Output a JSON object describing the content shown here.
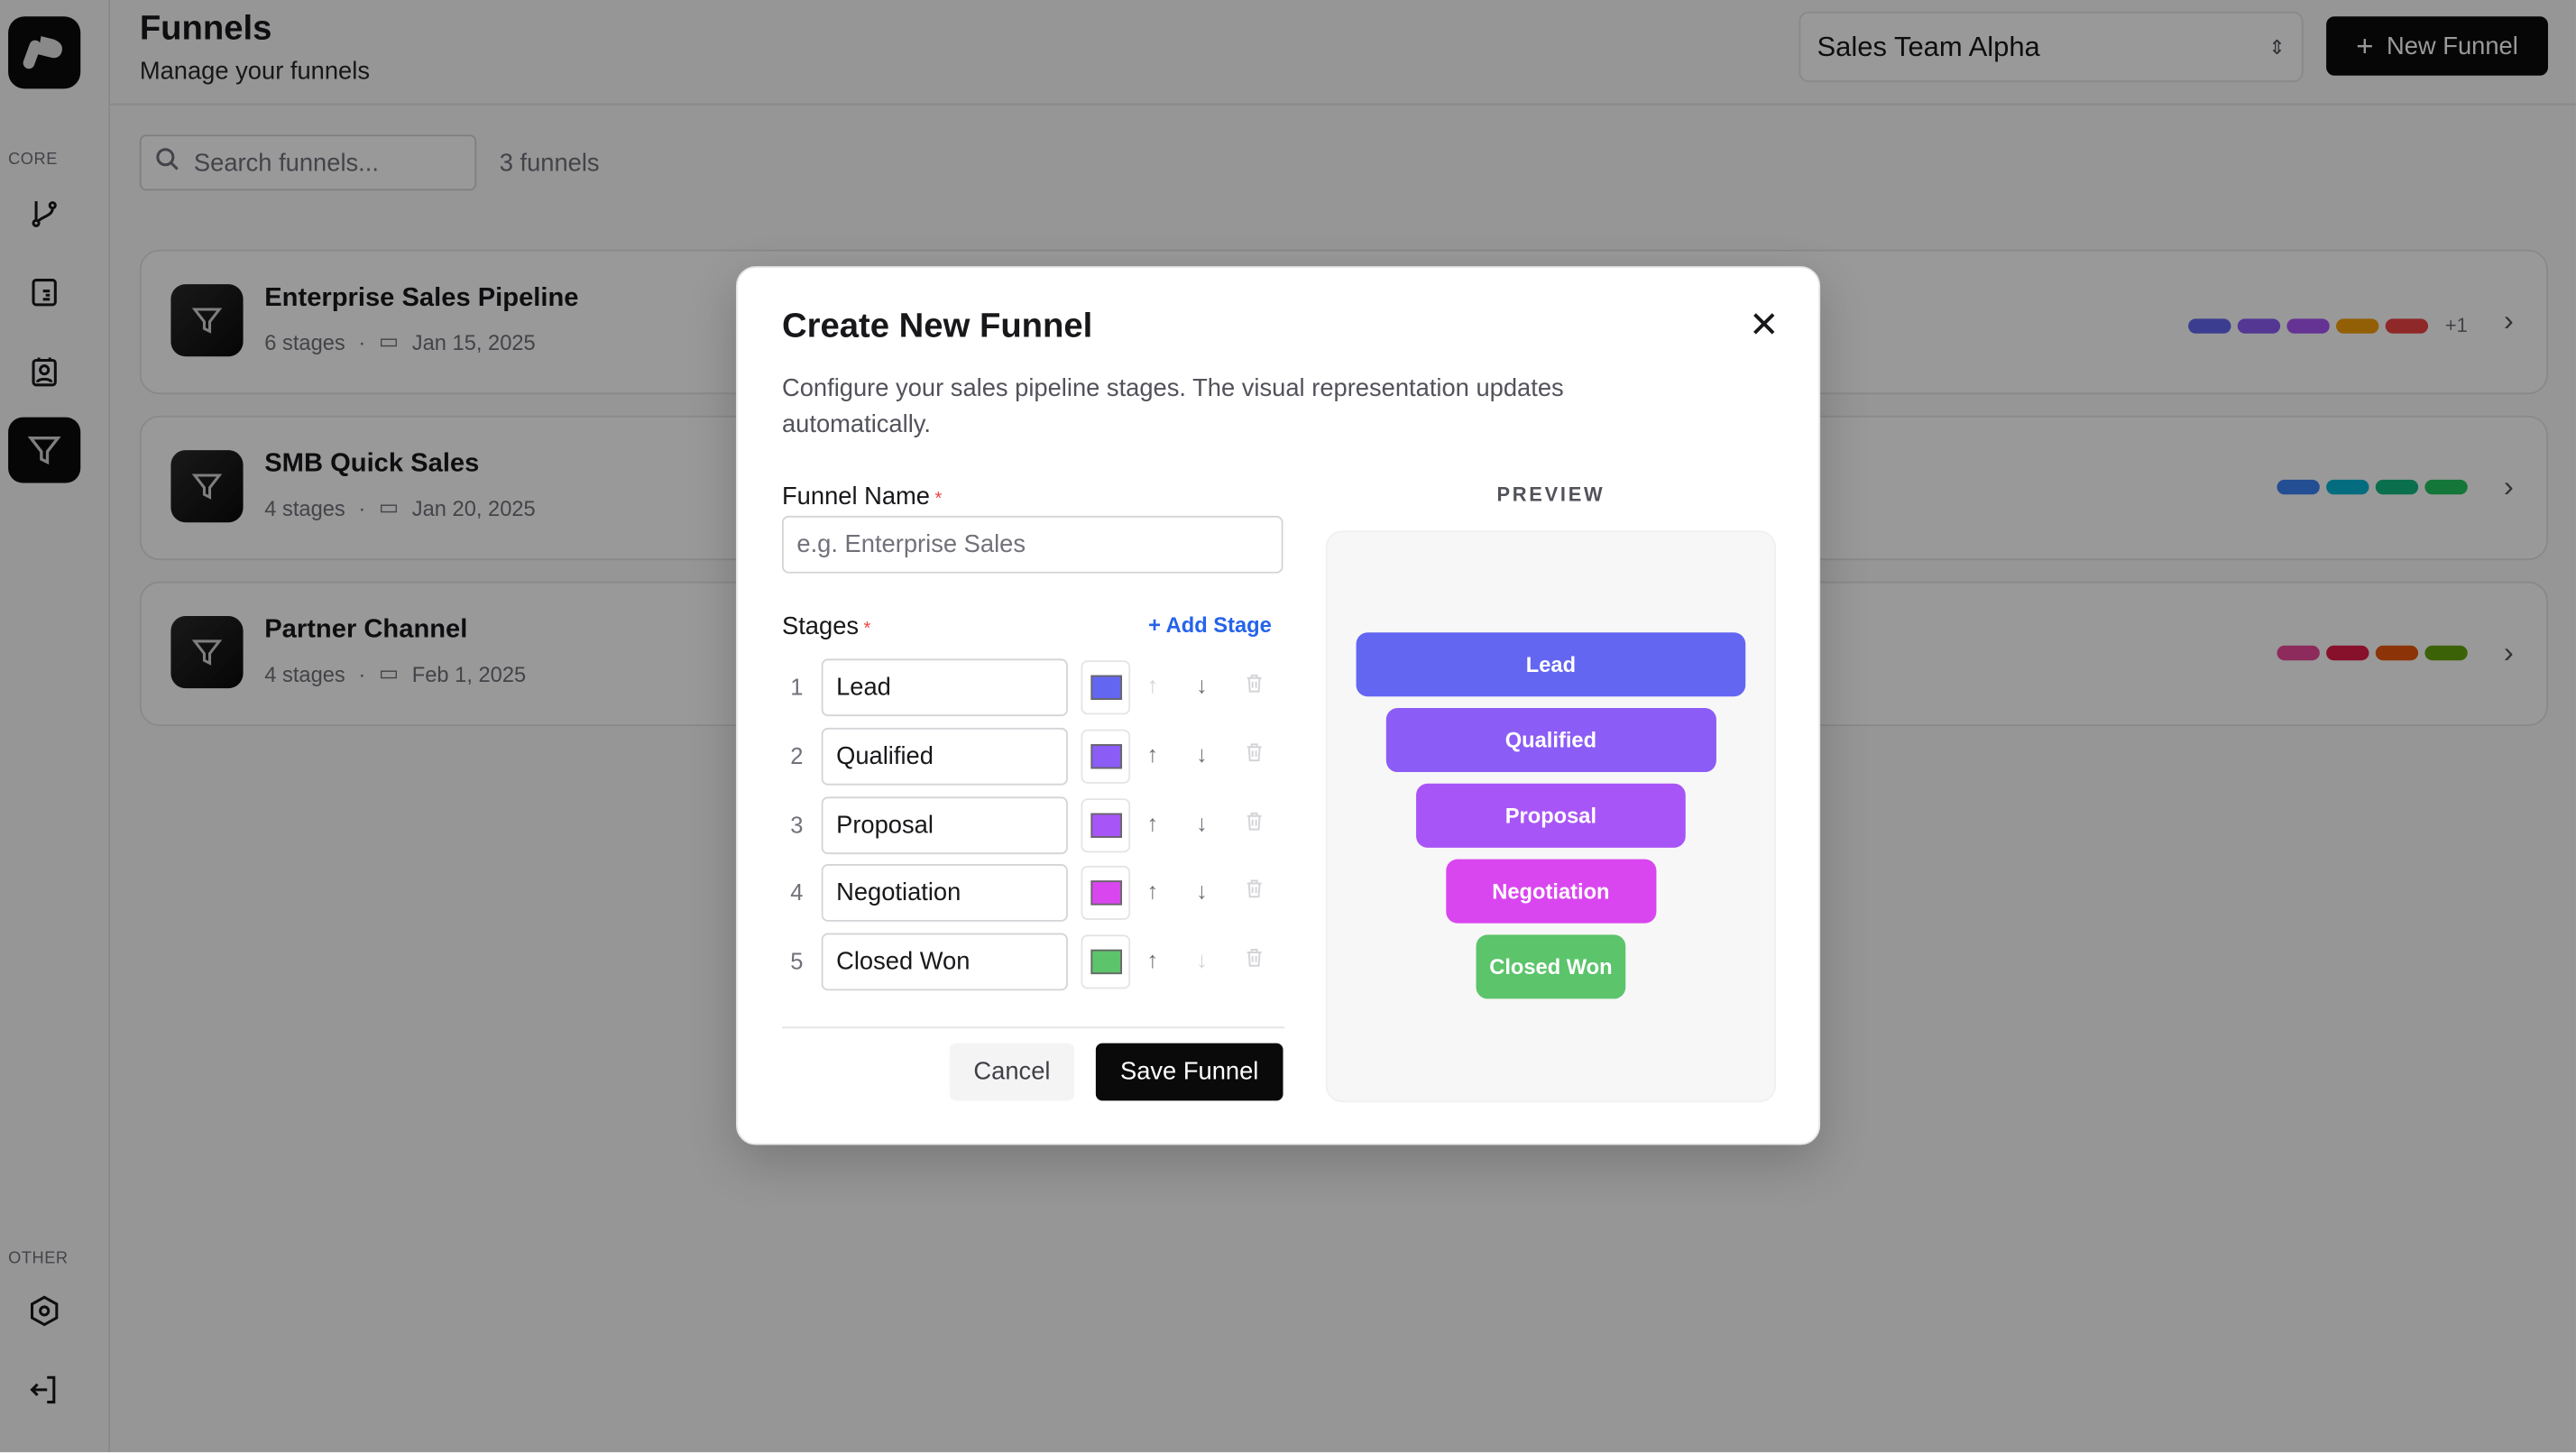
{
  "sidebar": {
    "core_label": "CORE",
    "other_label": "OTHER",
    "items": [
      {
        "icon": "git-branch-icon"
      },
      {
        "icon": "document-icon"
      },
      {
        "icon": "contact-badge-icon"
      },
      {
        "icon": "funnel-icon",
        "active": true
      }
    ],
    "other_items": [
      {
        "icon": "settings-hexagon-icon"
      },
      {
        "icon": "logout-icon"
      }
    ]
  },
  "header": {
    "title": "Funnels",
    "subtitle": "Manage your funnels",
    "team_select": "Sales Team Alpha",
    "new_button": "New Funnel"
  },
  "toolbar": {
    "search_placeholder": "Search funnels...",
    "count": "3 funnels"
  },
  "funnels": [
    {
      "name": "Enterprise Sales Pipeline",
      "stages": "6 stages",
      "date": "Jan 15, 2025",
      "colors": [
        "#6366f1",
        "#8b5cf6",
        "#a855f7",
        "#f59e0b",
        "#ef4444"
      ],
      "more": "+1"
    },
    {
      "name": "SMB Quick Sales",
      "stages": "4 stages",
      "date": "Jan 20, 2025",
      "colors": [
        "#3b82f6",
        "#06b6d4",
        "#10b981",
        "#22c55e"
      ]
    },
    {
      "name": "Partner Channel",
      "stages": "4 stages",
      "date": "Feb 1, 2025",
      "colors": [
        "#ec4899",
        "#e11d48",
        "#ea580c",
        "#65a30d"
      ]
    }
  ],
  "modal": {
    "title": "Create New Funnel",
    "description": "Configure your sales pipeline stages. The visual representation updates automatically.",
    "name_label": "Funnel Name",
    "name_placeholder": "e.g. Enterprise Sales",
    "name_value": "",
    "stages_label": "Stages",
    "add_stage": "+ Add Stage",
    "stages": [
      {
        "num": "1",
        "name": "Lead",
        "color": "#6366f1"
      },
      {
        "num": "2",
        "name": "Qualified",
        "color": "#8b5cf6"
      },
      {
        "num": "3",
        "name": "Proposal",
        "color": "#a855f7"
      },
      {
        "num": "4",
        "name": "Negotiation",
        "color": "#d946ef"
      },
      {
        "num": "5",
        "name": "Closed Won",
        "color": "#5cc46b"
      }
    ],
    "cancel": "Cancel",
    "save": "Save Funnel",
    "preview_label": "PREVIEW"
  }
}
